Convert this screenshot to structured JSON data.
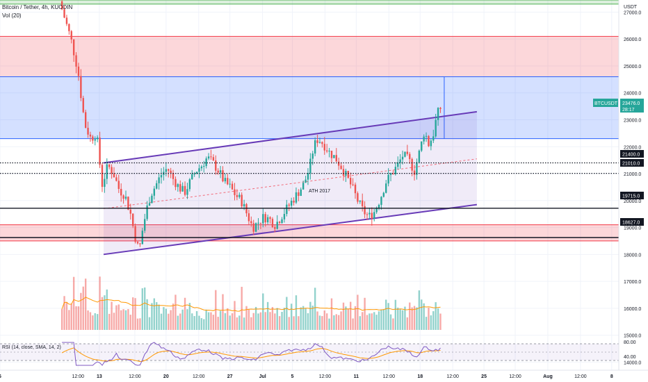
{
  "header": {
    "symbol_title": "Bitcoin / Tether, 4h, KUCOIN",
    "volume_label": "Vol (20)",
    "currency": "USDT"
  },
  "price_badge": {
    "symbol": "BTCUSDT",
    "price": "23476.0",
    "countdown": "28:17",
    "color": "#26a69a"
  },
  "level_labels": [
    "21400.0",
    "21010.0",
    "19715.0",
    "18627.0"
  ],
  "annotation": "ATH 2017",
  "rsi": {
    "label": "RSI (14, close, SMA, 14, 2)",
    "ticks": [
      "80.00",
      "40.00"
    ]
  },
  "colors": {
    "zone_blue": "#2962ff",
    "zone_red": "#f23645",
    "zone_green": "#4caf50",
    "channel": "#673ab7",
    "volume_up": "#26a69a",
    "volume_down": "#ef5350",
    "rsi_line": "#7e57c2",
    "rsi_ma": "#ff9800",
    "volume_ma": "#ff9800"
  },
  "chart_data": {
    "type": "candlestick",
    "y_axis": {
      "ticks": [
        27000,
        26000,
        25000,
        24000,
        23000,
        22000,
        21000,
        20000,
        19000,
        18000,
        17000,
        16000,
        15000,
        14000
      ],
      "range": [
        13700,
        27450
      ]
    },
    "x_axis": {
      "ticks": [
        {
          "label": "6",
          "day": 6
        },
        {
          "label": "12:00",
          "day": 11.5
        },
        {
          "label": "13",
          "day": 13
        },
        {
          "label": "12:00",
          "day": 15.5
        },
        {
          "label": "20",
          "day": 17.7
        },
        {
          "label": "12:00",
          "day": 20
        },
        {
          "label": "27",
          "day": 22.2
        },
        {
          "label": "Jul",
          "day": 24.5
        },
        {
          "label": "5",
          "day": 26.6
        },
        {
          "label": "12:00",
          "day": 28.9
        },
        {
          "label": "11",
          "day": 31.1
        },
        {
          "label": "12:00",
          "day": 33.4
        },
        {
          "label": "18",
          "day": 35.6
        },
        {
          "label": "12:00",
          "day": 37.9
        },
        {
          "label": "25",
          "day": 40.1
        },
        {
          "label": "12:00",
          "day": 42.3
        },
        {
          "label": "Aug",
          "day": 44.6
        },
        {
          "label": "12:00",
          "day": 46.9
        },
        {
          "label": "8",
          "day": 49.1
        }
      ],
      "range": [
        6,
        49.6
      ]
    },
    "zones": [
      {
        "color": "green",
        "from": 27300,
        "to": 27450,
        "day_from": 6,
        "day_to": 49.6
      },
      {
        "color": "red",
        "from": 24600,
        "to": 26100,
        "day_from": 6,
        "day_to": 49.6
      },
      {
        "color": "blue",
        "from": 22300,
        "to": 24600,
        "day_from": 6,
        "day_to": 49.6
      },
      {
        "color": "red",
        "from": 18500,
        "to": 19100,
        "day_from": 6,
        "day_to": 49.6
      }
    ],
    "horizontal_levels": [
      {
        "price": 21400,
        "style": "dotted"
      },
      {
        "price": 21010,
        "style": "dotted"
      },
      {
        "price": 19715,
        "style": "solid"
      },
      {
        "price": 18627,
        "style": "solid"
      }
    ],
    "channel": {
      "upper": [
        [
          13.3,
          21400
        ],
        [
          39.6,
          23300
        ]
      ],
      "lower": [
        [
          13.3,
          18000
        ],
        [
          39.6,
          19850
        ]
      ],
      "mid": [
        [
          13.3,
          19700
        ],
        [
          39.6,
          21550
        ]
      ]
    },
    "measure_line": {
      "day": 37.3,
      "from": 22300,
      "to": 24600
    },
    "ohlc_path": [
      [
        10.2,
        27400
      ],
      [
        11.0,
        26000
      ],
      [
        11.5,
        24800
      ],
      [
        11.8,
        23500
      ],
      [
        12.0,
        22800
      ],
      [
        12.4,
        22300
      ],
      [
        12.8,
        22500
      ],
      [
        13.0,
        21500
      ],
      [
        13.2,
        20600
      ],
      [
        13.6,
        21300
      ],
      [
        14.0,
        21000
      ],
      [
        14.4,
        20400
      ],
      [
        14.8,
        20200
      ],
      [
        15.2,
        19500
      ],
      [
        15.5,
        18700
      ],
      [
        15.8,
        18100
      ],
      [
        16.0,
        18800
      ],
      [
        16.3,
        19600
      ],
      [
        16.6,
        20200
      ],
      [
        17.0,
        20600
      ],
      [
        17.4,
        21000
      ],
      [
        17.8,
        21200
      ],
      [
        18.2,
        20800
      ],
      [
        18.6,
        20500
      ],
      [
        19.0,
        20300
      ],
      [
        19.4,
        20700
      ],
      [
        19.8,
        21100
      ],
      [
        20.2,
        21300
      ],
      [
        20.6,
        21600
      ],
      [
        21.0,
        21400
      ],
      [
        21.4,
        21100
      ],
      [
        21.8,
        20700
      ],
      [
        22.2,
        20500
      ],
      [
        22.6,
        20200
      ],
      [
        23.0,
        20000
      ],
      [
        23.4,
        19500
      ],
      [
        23.8,
        19000
      ],
      [
        24.2,
        19200
      ],
      [
        24.6,
        19400
      ],
      [
        25.0,
        19300
      ],
      [
        25.4,
        19100
      ],
      [
        25.8,
        19400
      ],
      [
        26.2,
        19700
      ],
      [
        26.6,
        20000
      ],
      [
        27.0,
        20300
      ],
      [
        27.4,
        20600
      ],
      [
        27.8,
        21200
      ],
      [
        28.1,
        22000
      ],
      [
        28.4,
        22300
      ],
      [
        28.8,
        22100
      ],
      [
        29.2,
        21800
      ],
      [
        29.6,
        21600
      ],
      [
        30.0,
        21300
      ],
      [
        30.4,
        20900
      ],
      [
        30.8,
        20500
      ],
      [
        31.2,
        20000
      ],
      [
        31.6,
        19600
      ],
      [
        32.0,
        19400
      ],
      [
        32.4,
        19600
      ],
      [
        32.8,
        20100
      ],
      [
        33.2,
        20700
      ],
      [
        33.6,
        21000
      ],
      [
        34.0,
        21300
      ],
      [
        34.4,
        21700
      ],
      [
        34.8,
        21500
      ],
      [
        35.2,
        21100
      ],
      [
        35.6,
        21900
      ],
      [
        35.9,
        22600
      ],
      [
        36.2,
        22100
      ],
      [
        36.5,
        22400
      ],
      [
        36.8,
        23200
      ],
      [
        37.1,
        23500
      ]
    ]
  }
}
